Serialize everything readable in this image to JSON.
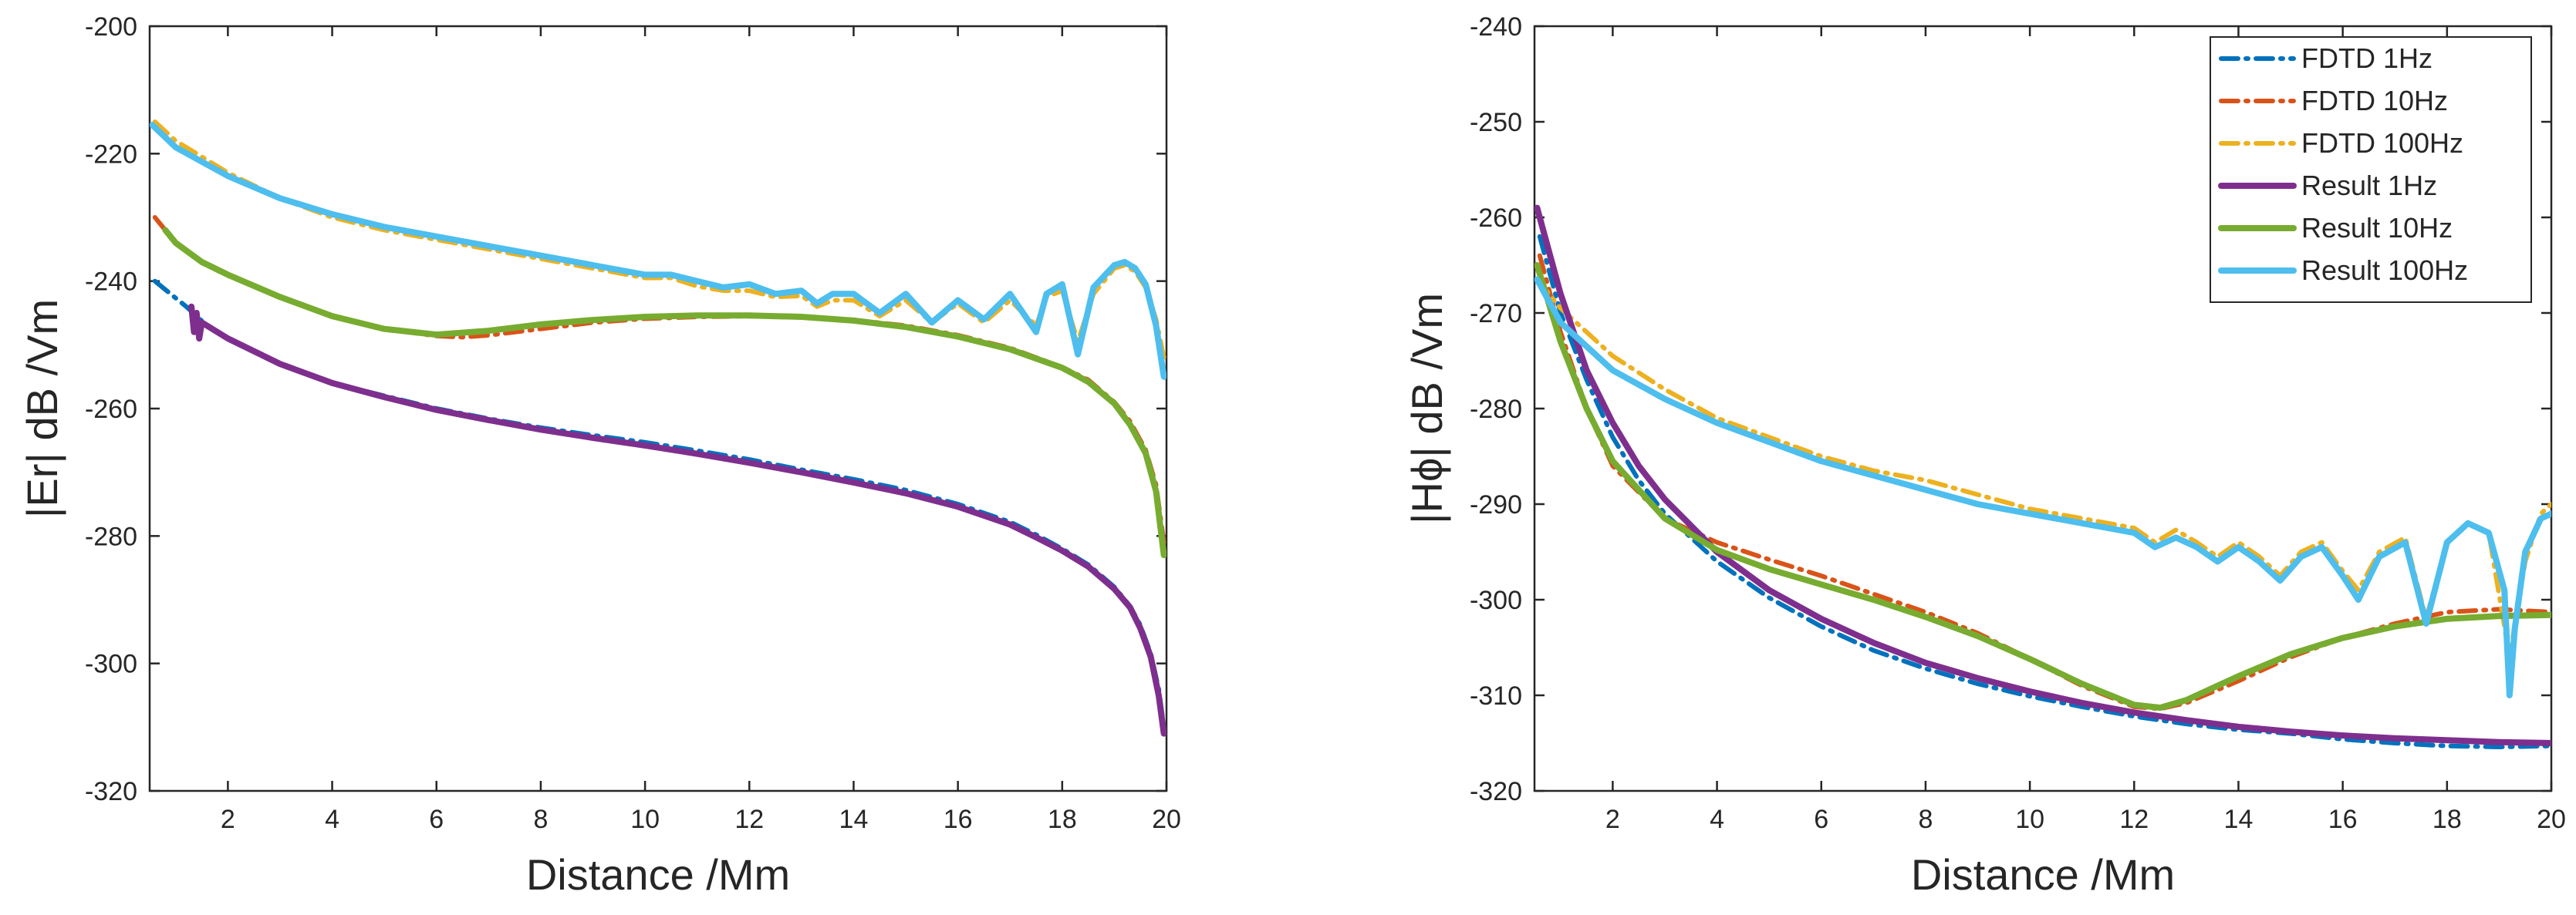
{
  "chart_data": [
    {
      "type": "line",
      "title": "",
      "xlabel": "Distance /Mm",
      "ylabel": "|Er| dB /Vm",
      "xlim": [
        0.5,
        20
      ],
      "ylim": [
        -320,
        -200
      ],
      "xticks": [
        2,
        4,
        6,
        8,
        10,
        12,
        14,
        16,
        18,
        20
      ],
      "yticks": [
        -320,
        -300,
        -280,
        -260,
        -240,
        -220,
        -200
      ],
      "legend": null,
      "series": [
        {
          "name": "FDTD 1Hz",
          "color": "#0072BD",
          "style": "dashdot",
          "x": [
            0.6,
            0.9,
            1.2,
            1.6,
            2,
            3,
            4,
            5,
            6,
            7,
            8,
            9,
            10,
            11,
            12,
            13,
            14,
            15,
            16,
            17,
            17.5,
            18,
            18.5,
            19,
            19.3,
            19.5,
            19.7,
            19.85,
            19.95
          ],
          "y": [
            -240,
            -242,
            -244,
            -247,
            -249,
            -253,
            -256,
            -258,
            -260,
            -261.6,
            -263,
            -264.2,
            -265.3,
            -266.6,
            -268,
            -269.6,
            -271.1,
            -272.8,
            -275,
            -277.8,
            -279.8,
            -282,
            -284.5,
            -288,
            -291,
            -294,
            -298.5,
            -304,
            -310
          ]
        },
        {
          "name": "FDTD 10Hz",
          "color": "#D95319",
          "style": "dashdot",
          "x": [
            0.6,
            1,
            1.5,
            2,
            3,
            4,
            5,
            6,
            6.5,
            7,
            8,
            9,
            10,
            11,
            12,
            13,
            14,
            15,
            16,
            17,
            18,
            18.5,
            19,
            19.3,
            19.6,
            19.8,
            19.95
          ],
          "y": [
            -230,
            -234,
            -237,
            -239,
            -242.5,
            -245.5,
            -247.5,
            -248.6,
            -248.8,
            -248.5,
            -247.5,
            -246.5,
            -245.9,
            -245.6,
            -245.5,
            -245.6,
            -246.1,
            -247,
            -248.5,
            -250.5,
            -253.5,
            -255.5,
            -259,
            -262,
            -266.5,
            -272,
            -281
          ]
        },
        {
          "name": "FDTD 100Hz",
          "color": "#EDB120",
          "style": "dashdot",
          "x": [
            0.6,
            1,
            2,
            3,
            4,
            5,
            6,
            7,
            8,
            9,
            10,
            10.5,
            11,
            11.5,
            12,
            12.5,
            13,
            13.3,
            13.6,
            14,
            14.5,
            15,
            15.5,
            16,
            16.5,
            17,
            17.5,
            17.7,
            18,
            18.3,
            18.6,
            19,
            19.2,
            19.4,
            19.6,
            19.8,
            19.95
          ],
          "y": [
            -215,
            -218,
            -223,
            -227,
            -230,
            -232,
            -233.5,
            -235,
            -236.5,
            -238,
            -239.5,
            -239.5,
            -240.8,
            -241.5,
            -241.5,
            -242.5,
            -242.3,
            -244,
            -243,
            -243,
            -245.5,
            -243,
            -246.5,
            -243.5,
            -246.5,
            -243,
            -247,
            -242.5,
            -241.5,
            -249.5,
            -242,
            -238,
            -237.5,
            -238.5,
            -241,
            -246,
            -252
          ]
        },
        {
          "name": "Result 1Hz",
          "color": "#7E2F8E",
          "style": "solid",
          "x": [
            1.3,
            1.35,
            1.4,
            1.45,
            1.5,
            1.6,
            2,
            3,
            4,
            5,
            6,
            7,
            8,
            9,
            10,
            11,
            12,
            13,
            14,
            15,
            16,
            17,
            17.5,
            18,
            18.5,
            19,
            19.3,
            19.5,
            19.7,
            19.85,
            19.95
          ],
          "y": [
            -244,
            -248,
            -245,
            -249,
            -246.5,
            -247,
            -249,
            -253,
            -256,
            -258.2,
            -260.2,
            -261.8,
            -263.3,
            -264.6,
            -265.8,
            -267.1,
            -268.5,
            -270,
            -271.6,
            -273.3,
            -275.4,
            -278.2,
            -280.2,
            -282.3,
            -284.8,
            -288.3,
            -291.2,
            -294.5,
            -299,
            -305,
            -311
          ]
        },
        {
          "name": "Result 10Hz",
          "color": "#77AC30",
          "style": "solid",
          "x": [
            0.8,
            1,
            1.5,
            2,
            3,
            4,
            5,
            6,
            7,
            8,
            9,
            10,
            11,
            12,
            13,
            14,
            15,
            16,
            17,
            18,
            18.5,
            19,
            19.3,
            19.6,
            19.8,
            19.95
          ],
          "y": [
            -232,
            -234,
            -237,
            -239,
            -242.5,
            -245.5,
            -247.5,
            -248.4,
            -247.8,
            -246.8,
            -246.1,
            -245.6,
            -245.4,
            -245.4,
            -245.6,
            -246.2,
            -247.2,
            -248.7,
            -250.7,
            -253.6,
            -255.8,
            -259.2,
            -262.5,
            -267,
            -273,
            -283
          ]
        },
        {
          "name": "Result 100Hz",
          "color": "#4DBEEE",
          "style": "solid",
          "x": [
            0.55,
            1,
            2,
            3,
            4,
            5,
            6,
            7,
            8,
            9,
            10,
            10.5,
            11,
            11.5,
            12,
            12.5,
            13,
            13.3,
            13.6,
            14,
            14.5,
            15,
            15.5,
            16,
            16.5,
            17,
            17.5,
            17.7,
            18,
            18.3,
            18.6,
            19,
            19.2,
            19.4,
            19.6,
            19.8,
            19.95
          ],
          "y": [
            -215.5,
            -219,
            -223.5,
            -227,
            -229.5,
            -231.5,
            -233,
            -234.5,
            -236,
            -237.5,
            -239,
            -239,
            -240,
            -241,
            -240.5,
            -242,
            -241.5,
            -243.5,
            -242,
            -242,
            -245,
            -242,
            -246.5,
            -243,
            -246,
            -242,
            -248,
            -242,
            -240.5,
            -251.5,
            -241,
            -237.5,
            -237,
            -238,
            -240.5,
            -247,
            -255
          ]
        }
      ]
    },
    {
      "type": "line",
      "title": "",
      "xlabel": "Distance /Mm",
      "ylabel": "|Hϕ| dB /Vm",
      "xlim": [
        0.5,
        20
      ],
      "ylim": [
        -320,
        -240
      ],
      "xticks": [
        2,
        4,
        6,
        8,
        10,
        12,
        14,
        16,
        18,
        20
      ],
      "yticks": [
        -320,
        -310,
        -300,
        -290,
        -280,
        -270,
        -260,
        -250,
        -240
      ],
      "legend": "top-right",
      "series": [
        {
          "name": "FDTD 1Hz",
          "color": "#0072BD",
          "style": "dashdot",
          "x": [
            0.6,
            0.8,
            1,
            1.5,
            2,
            2.5,
            3,
            4,
            5,
            6,
            7,
            8,
            9,
            10,
            11,
            12,
            13,
            14,
            15,
            16,
            17,
            18,
            19,
            20
          ],
          "y": [
            -262,
            -266,
            -270,
            -277,
            -283,
            -287.5,
            -291,
            -296,
            -299.8,
            -302.8,
            -305.3,
            -307.2,
            -308.8,
            -310.1,
            -311.2,
            -312.2,
            -313,
            -313.6,
            -314,
            -314.6,
            -315,
            -315.3,
            -315.4,
            -315.3
          ]
        },
        {
          "name": "FDTD 10Hz",
          "color": "#D95319",
          "style": "dashdot",
          "x": [
            0.6,
            1,
            1.5,
            2,
            3,
            4,
            5,
            6,
            7,
            8,
            9,
            10,
            11,
            12,
            12.5,
            13,
            14,
            15,
            16,
            17,
            18,
            19,
            20
          ],
          "y": [
            -264,
            -272,
            -280,
            -286,
            -291.5,
            -294,
            -295.8,
            -297.5,
            -299.4,
            -301.3,
            -303.5,
            -306.2,
            -309,
            -311.2,
            -311.4,
            -310.8,
            -308.5,
            -306,
            -304,
            -302.5,
            -301.3,
            -301,
            -301.3
          ]
        },
        {
          "name": "FDTD 100Hz",
          "color": "#EDB120",
          "style": "dashdot",
          "x": [
            0.55,
            1,
            2,
            3,
            4,
            5,
            6,
            7,
            8,
            9,
            10,
            11,
            11.5,
            12,
            12.4,
            12.8,
            13.2,
            13.6,
            14,
            14.4,
            14.8,
            15.2,
            15.6,
            16,
            16.3,
            16.7,
            17.2,
            17.6,
            18,
            18.4,
            18.8,
            19.2,
            19.5,
            19.8,
            20
          ],
          "y": [
            -266.5,
            -269.5,
            -274.5,
            -278,
            -281,
            -283,
            -285,
            -286.5,
            -287.5,
            -289,
            -290.5,
            -291.5,
            -292,
            -292.5,
            -294,
            -292.7,
            -294,
            -295.5,
            -294,
            -295.5,
            -297.5,
            -295,
            -294,
            -297,
            -299,
            -295,
            -293.5,
            -302,
            -294,
            -292,
            -293,
            -306,
            -296,
            -291,
            -290
          ]
        },
        {
          "name": "Result 1Hz",
          "color": "#7E2F8E",
          "style": "solid",
          "x": [
            0.55,
            0.7,
            1,
            1.5,
            2,
            2.5,
            3,
            4,
            5,
            6,
            7,
            8,
            9,
            10,
            11,
            12,
            13,
            14,
            15,
            16,
            17,
            18,
            19,
            20
          ],
          "y": [
            -259,
            -262,
            -268,
            -276,
            -281.5,
            -286,
            -289.5,
            -295,
            -299,
            -302,
            -304.5,
            -306.6,
            -308.2,
            -309.6,
            -310.8,
            -311.8,
            -312.6,
            -313.3,
            -313.8,
            -314.2,
            -314.5,
            -314.7,
            -314.9,
            -315
          ]
        },
        {
          "name": "Result 10Hz",
          "color": "#77AC30",
          "style": "solid",
          "x": [
            0.55,
            1,
            1.5,
            2,
            3,
            4,
            5,
            6,
            7,
            8,
            9,
            10,
            11,
            12,
            12.5,
            13,
            14,
            15,
            16,
            17,
            18,
            19,
            20
          ],
          "y": [
            -265,
            -273,
            -280,
            -285.5,
            -291.5,
            -294.8,
            -296.8,
            -298.4,
            -300,
            -301.8,
            -303.8,
            -306.2,
            -308.8,
            -311,
            -311.3,
            -310.5,
            -308,
            -305.7,
            -304,
            -302.8,
            -302,
            -301.7,
            -301.6
          ]
        },
        {
          "name": "Result 100Hz",
          "color": "#4DBEEE",
          "style": "solid",
          "x": [
            0.55,
            1,
            2,
            3,
            4,
            5,
            6,
            7,
            8,
            9,
            10,
            11,
            11.5,
            12,
            12.4,
            12.8,
            13.2,
            13.6,
            14,
            14.4,
            14.8,
            15.2,
            15.6,
            16,
            16.3,
            16.7,
            17.2,
            17.6,
            18,
            18.4,
            18.8,
            19.1,
            19.2,
            19.3,
            19.5,
            19.8,
            20
          ],
          "y": [
            -266.5,
            -271,
            -276,
            -279,
            -281.5,
            -283.5,
            -285.5,
            -287,
            -288.5,
            -290,
            -291,
            -292,
            -292.5,
            -293,
            -294.5,
            -293.5,
            -294.5,
            -296,
            -294.5,
            -296,
            -298,
            -295.5,
            -294.5,
            -297.5,
            -300,
            -295.5,
            -294,
            -302.5,
            -294,
            -292,
            -293,
            -299,
            -310,
            -303,
            -295,
            -291.5,
            -291
          ]
        }
      ]
    }
  ]
}
